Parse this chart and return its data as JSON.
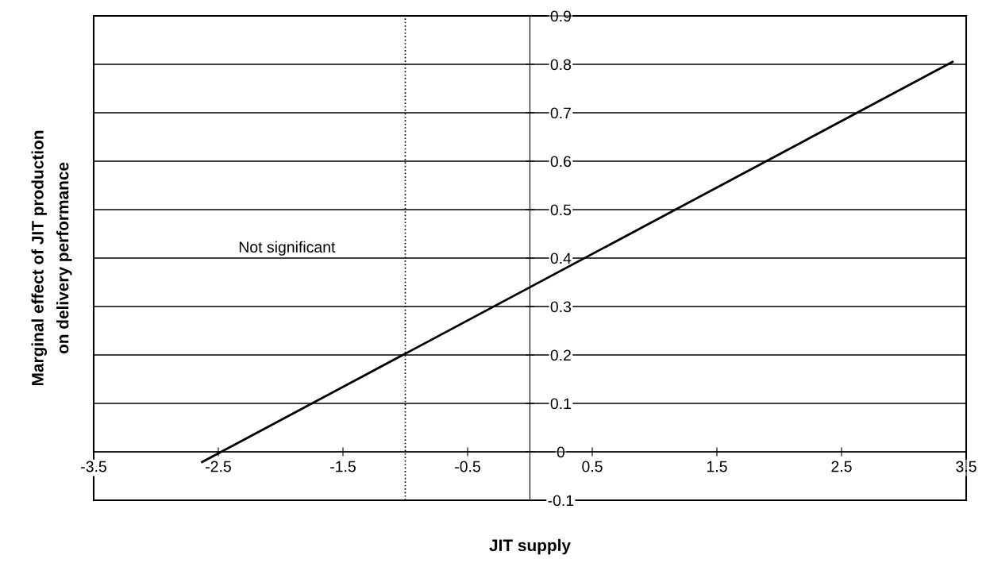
{
  "chart_data": {
    "type": "line",
    "xlabel": "JIT supply",
    "ylabel": "Marginal effect of JIT production\non delivery performance",
    "series": [
      {
        "color": "#000000",
        "x": [
          -2.63,
          3.39
        ],
        "values": [
          -0.021,
          0.805
        ]
      }
    ],
    "xlim": [
      -3.5,
      3.5
    ],
    "xticks": [
      -3.5,
      -2.5,
      -1.5,
      -0.5,
      0.5,
      1.5,
      2.5,
      3.5
    ],
    "ylim": [
      -0.1,
      0.9
    ],
    "yticks": [
      -0.1,
      0,
      0.1,
      0.2,
      0.3,
      0.4,
      0.5,
      0.6,
      0.7,
      0.8,
      0.9
    ],
    "grid": "y",
    "marker": "none",
    "line_style": "solid",
    "ref_lines": [
      {
        "axis": "x",
        "value": -1,
        "label": null,
        "color": "#000000",
        "line_style": "dotted"
      }
    ],
    "annotations": [
      "Not significant"
    ]
  }
}
